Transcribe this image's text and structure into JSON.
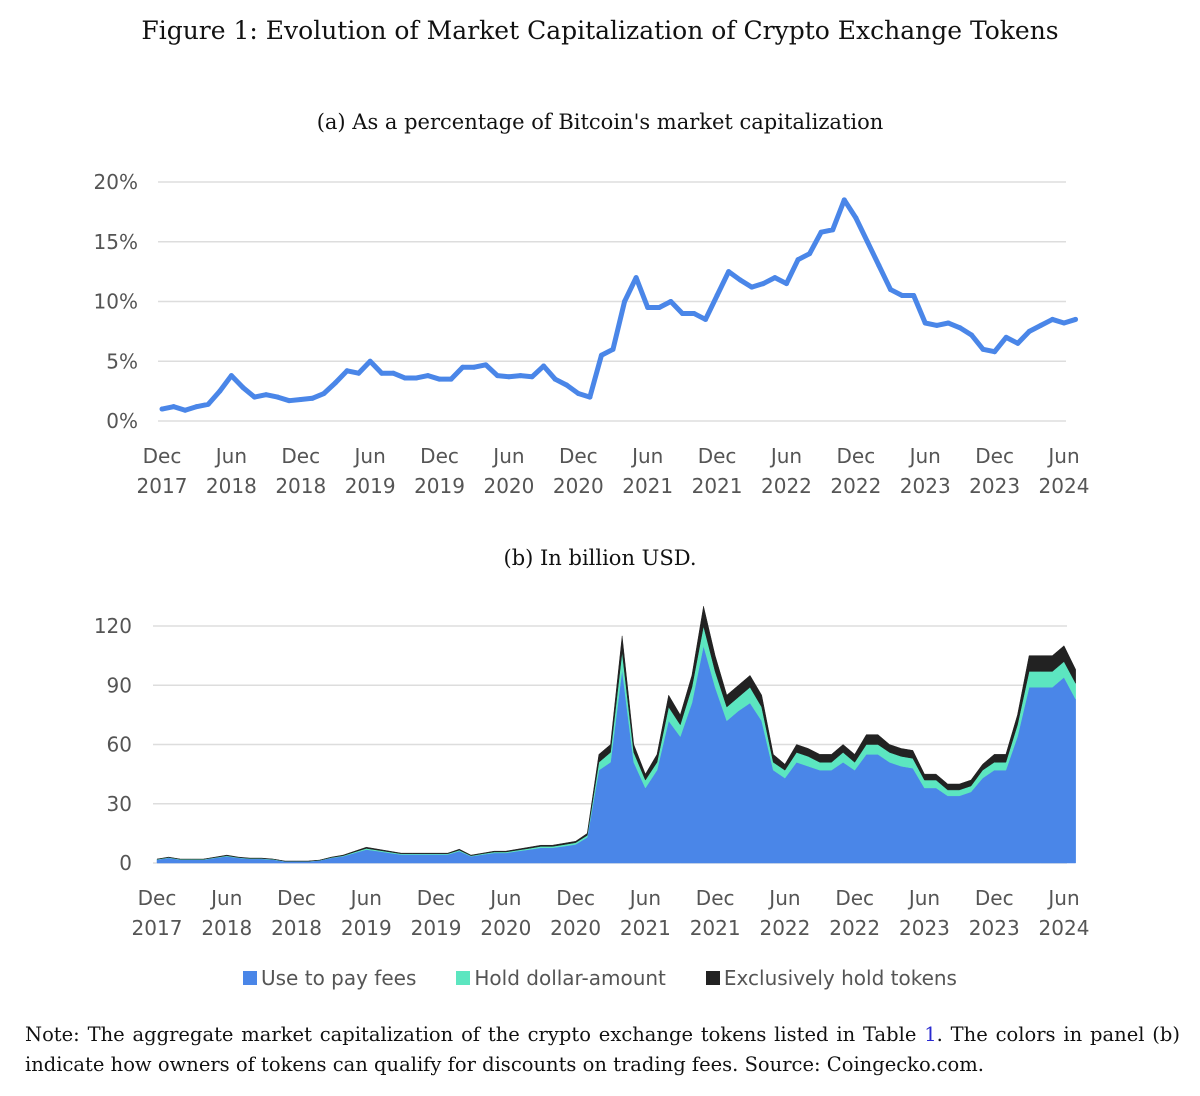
{
  "figure_title": "Figure 1: Evolution of Market Capitalization of Crypto Exchange Tokens",
  "note": {
    "before_ref": "Note: The aggregate market capitalization of the crypto exchange tokens listed in Table ",
    "ref": "1",
    "after_ref": ". The colors in panel (b) indicate how owners of tokens can qualify for discounts on trading fees. Source: Coingecko.com."
  },
  "colors": {
    "fees": "#4a86e8",
    "dollar": "#5ce6c0",
    "exclusive": "#222222",
    "line": "#4a86e8",
    "grid": "#dddddd"
  },
  "chart_data": [
    {
      "type": "line",
      "title": "(a) As a percentage of Bitcoin's market capitalization",
      "xlabel": "",
      "ylabel": "",
      "ylim": [
        0,
        20
      ],
      "yticks": [
        0,
        5,
        10,
        15,
        20
      ],
      "ytick_labels": [
        "0%",
        "5%",
        "10%",
        "15%",
        "20%"
      ],
      "xtick_labels": [
        "Dec 2017",
        "Jun 2018",
        "Dec 2018",
        "Jun 2019",
        "Dec 2019",
        "Jun 2020",
        "Dec 2020",
        "Jun 2021",
        "Dec 2021",
        "Jun 2022",
        "Dec 2022",
        "Jun 2023",
        "Dec 2023",
        "Jun 2024"
      ],
      "grid": true,
      "x": [
        "2017-12",
        "2018-01",
        "2018-02",
        "2018-03",
        "2018-04",
        "2018-05",
        "2018-06",
        "2018-07",
        "2018-08",
        "2018-09",
        "2018-10",
        "2018-11",
        "2018-12",
        "2019-01",
        "2019-02",
        "2019-03",
        "2019-04",
        "2019-05",
        "2019-06",
        "2019-07",
        "2019-08",
        "2019-09",
        "2019-10",
        "2019-11",
        "2019-12",
        "2020-01",
        "2020-02",
        "2020-03",
        "2020-04",
        "2020-05",
        "2020-06",
        "2020-07",
        "2020-08",
        "2020-09",
        "2020-10",
        "2020-11",
        "2020-12",
        "2021-01",
        "2021-02",
        "2021-03",
        "2021-04",
        "2021-05",
        "2021-06",
        "2021-07",
        "2021-08",
        "2021-09",
        "2021-10",
        "2021-11",
        "2021-12",
        "2022-01",
        "2022-02",
        "2022-03",
        "2022-04",
        "2022-05",
        "2022-06",
        "2022-07",
        "2022-08",
        "2022-09",
        "2022-10",
        "2022-11",
        "2022-12",
        "2023-01",
        "2023-02",
        "2023-03",
        "2023-04",
        "2023-05",
        "2023-06",
        "2023-07",
        "2023-08",
        "2023-09",
        "2023-10",
        "2023-11",
        "2023-12",
        "2024-01",
        "2024-02",
        "2024-03",
        "2024-04",
        "2024-05",
        "2024-06",
        "2024-07"
      ],
      "values": [
        1.0,
        1.2,
        0.9,
        1.2,
        1.4,
        2.5,
        3.8,
        2.8,
        2.0,
        2.2,
        2.0,
        1.7,
        1.8,
        1.9,
        2.3,
        3.2,
        4.2,
        4.0,
        5.0,
        4.0,
        4.0,
        3.6,
        3.6,
        3.8,
        3.5,
        3.5,
        4.5,
        4.5,
        4.7,
        3.8,
        3.7,
        3.8,
        3.7,
        4.6,
        3.5,
        3.0,
        2.3,
        2.0,
        5.5,
        6.0,
        10.0,
        12.0,
        9.5,
        9.5,
        10.0,
        9.0,
        9.0,
        8.5,
        10.5,
        12.5,
        11.8,
        11.2,
        11.5,
        12.0,
        11.5,
        13.5,
        14.0,
        15.8,
        16.0,
        18.5,
        17.0,
        15.0,
        13.0,
        11.0,
        10.5,
        10.5,
        8.2,
        8.0,
        8.2,
        7.8,
        7.2,
        6.0,
        5.8,
        7.0,
        6.5,
        7.5,
        8.0,
        8.5,
        8.2,
        8.5
      ]
    },
    {
      "type": "area",
      "stacked": true,
      "title": "(b) In billion USD.",
      "xlabel": "",
      "ylabel": "",
      "ylim": [
        0,
        135
      ],
      "yticks": [
        0,
        30,
        60,
        90,
        120
      ],
      "ytick_labels": [
        "0",
        "30",
        "60",
        "90",
        "120"
      ],
      "xtick_labels": [
        "Dec 2017",
        "Jun 2018",
        "Dec 2018",
        "Jun 2019",
        "Dec 2019",
        "Jun 2020",
        "Dec 2020",
        "Jun 2021",
        "Dec 2021",
        "Jun 2022",
        "Dec 2022",
        "Jun 2023",
        "Dec 2023",
        "Jun 2024"
      ],
      "grid": true,
      "legend": "bottom",
      "x": [
        "2017-12",
        "2018-01",
        "2018-02",
        "2018-03",
        "2018-04",
        "2018-05",
        "2018-06",
        "2018-07",
        "2018-08",
        "2018-09",
        "2018-10",
        "2018-11",
        "2018-12",
        "2019-01",
        "2019-02",
        "2019-03",
        "2019-04",
        "2019-05",
        "2019-06",
        "2019-07",
        "2019-08",
        "2019-09",
        "2019-10",
        "2019-11",
        "2019-12",
        "2020-01",
        "2020-02",
        "2020-03",
        "2020-04",
        "2020-05",
        "2020-06",
        "2020-07",
        "2020-08",
        "2020-09",
        "2020-10",
        "2020-11",
        "2020-12",
        "2021-01",
        "2021-02",
        "2021-03",
        "2021-04",
        "2021-05",
        "2021-06",
        "2021-07",
        "2021-08",
        "2021-09",
        "2021-10",
        "2021-11",
        "2021-12",
        "2022-01",
        "2022-02",
        "2022-03",
        "2022-04",
        "2022-05",
        "2022-06",
        "2022-07",
        "2022-08",
        "2022-09",
        "2022-10",
        "2022-11",
        "2022-12",
        "2023-01",
        "2023-02",
        "2023-03",
        "2023-04",
        "2023-05",
        "2023-06",
        "2023-07",
        "2023-08",
        "2023-09",
        "2023-10",
        "2023-11",
        "2023-12",
        "2024-01",
        "2024-02",
        "2024-03",
        "2024-04",
        "2024-05",
        "2024-06",
        "2024-07"
      ],
      "series": [
        {
          "name": "Use to pay fees",
          "color": "#4a86e8",
          "values": [
            1.7,
            2.6,
            1.7,
            1.7,
            1.7,
            2.6,
            3.4,
            2.6,
            2.1,
            2.1,
            1.7,
            0.8,
            0.8,
            0.8,
            1.3,
            2.6,
            3.4,
            5.1,
            6.8,
            6.0,
            5.1,
            4.3,
            4.3,
            4.3,
            4.3,
            4.3,
            6.0,
            3.4,
            4.3,
            5.1,
            5.1,
            6.0,
            6.8,
            7.7,
            7.7,
            8.5,
            9.4,
            13,
            47,
            51,
            98,
            51,
            38,
            47,
            72,
            64,
            81,
            110,
            89,
            72,
            77,
            81,
            72,
            47,
            43,
            51,
            49,
            47,
            47,
            51,
            47,
            55,
            55,
            51,
            49,
            48,
            38,
            38,
            34,
            34,
            36,
            43,
            47,
            47,
            64,
            89,
            89,
            89,
            94,
            83
          ]
        },
        {
          "name": "Hold dollar-amount",
          "color": "#5ce6c0",
          "values": [
            0.2,
            0.2,
            0.2,
            0.2,
            0.2,
            0.2,
            0.3,
            0.2,
            0.2,
            0.2,
            0.2,
            0.1,
            0.1,
            0.1,
            0.1,
            0.2,
            0.3,
            0.5,
            0.6,
            0.5,
            0.5,
            0.4,
            0.4,
            0.4,
            0.4,
            0.4,
            0.5,
            0.3,
            0.4,
            0.5,
            0.5,
            0.5,
            0.6,
            0.7,
            0.7,
            0.8,
            0.9,
            1,
            4,
            5,
            9,
            5,
            4,
            4,
            7,
            6,
            8,
            10,
            8,
            7,
            7,
            8,
            7,
            4,
            4,
            5,
            5,
            4,
            4,
            5,
            4,
            5,
            5,
            5,
            5,
            5,
            4,
            4,
            3,
            3,
            3,
            4,
            4,
            4,
            6,
            8,
            8,
            8,
            8,
            8
          ]
        },
        {
          "name": "Exclusively hold tokens",
          "color": "#222222",
          "values": [
            0.1,
            0.2,
            0.1,
            0.1,
            0.1,
            0.2,
            0.3,
            0.2,
            0.2,
            0.2,
            0.1,
            0.1,
            0.1,
            0.1,
            0.1,
            0.2,
            0.3,
            0.4,
            0.6,
            0.5,
            0.4,
            0.3,
            0.3,
            0.3,
            0.3,
            0.3,
            0.5,
            0.3,
            0.3,
            0.4,
            0.4,
            0.5,
            0.6,
            0.6,
            0.6,
            0.7,
            0.7,
            1,
            4,
            4,
            8,
            4,
            3,
            4,
            6,
            5,
            6,
            10,
            8,
            6,
            6,
            6,
            6,
            4,
            3,
            4,
            4,
            4,
            4,
            4,
            4,
            5,
            5,
            4,
            4,
            4,
            3,
            3,
            3,
            3,
            3,
            3,
            4,
            4,
            5,
            8,
            8,
            8,
            8,
            7
          ]
        }
      ]
    }
  ]
}
